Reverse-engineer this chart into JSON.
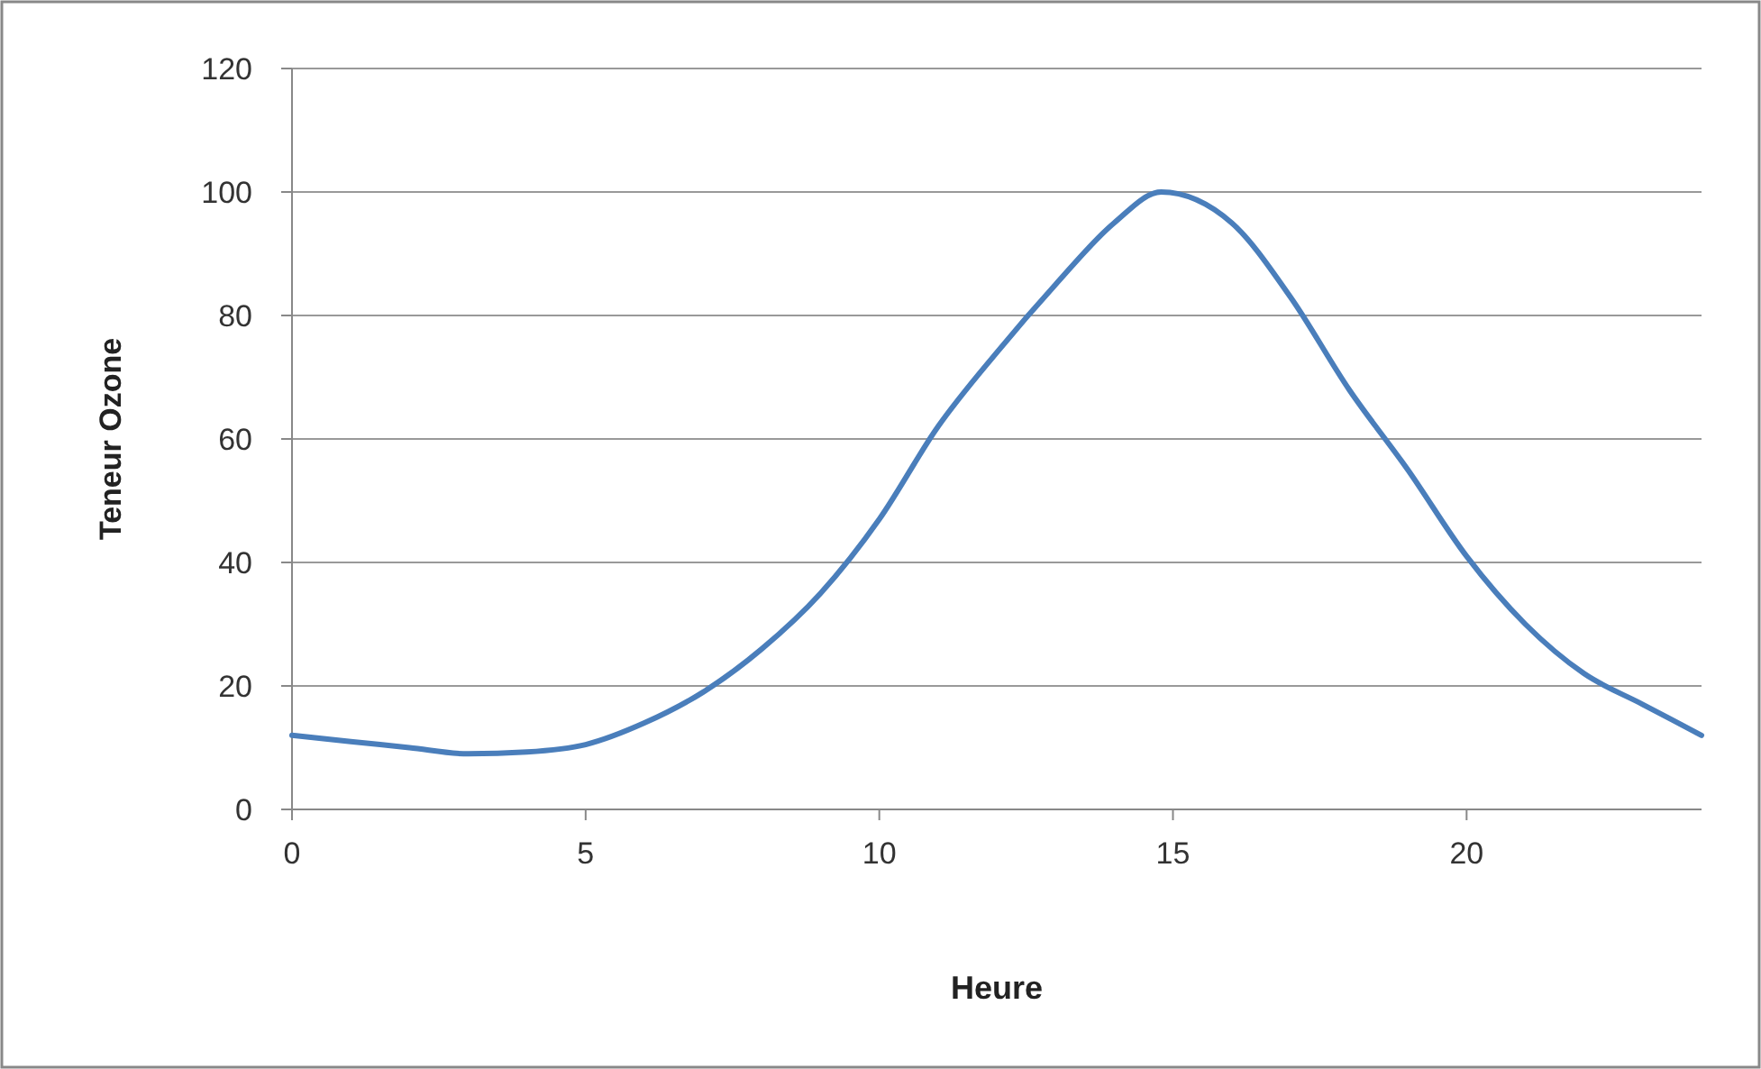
{
  "chart_data": {
    "type": "line",
    "xlabel": "Heure",
    "ylabel": "Teneur Ozone",
    "x": [
      0,
      1,
      2,
      3,
      4,
      5,
      6,
      7,
      8,
      9,
      10,
      11,
      12,
      13,
      14,
      14.8,
      16,
      17,
      18,
      19,
      20,
      21,
      22,
      23,
      24
    ],
    "series": [
      {
        "color": "#4a7ebb",
        "values": [
          12,
          11,
          10,
          9,
          9.3,
          10.5,
          14,
          19,
          26,
          35,
          47,
          62,
          74,
          85,
          95,
          100,
          95,
          83,
          68,
          55,
          41,
          30,
          22,
          17,
          12
        ]
      }
    ],
    "xlim": [
      0,
      24
    ],
    "xticks": [
      0,
      5,
      10,
      15,
      20
    ],
    "ylim": [
      0,
      120
    ],
    "yticks": [
      0,
      20,
      40,
      60,
      80,
      100,
      120
    ],
    "grid": "y",
    "marker": "none",
    "line_style": "solid"
  }
}
